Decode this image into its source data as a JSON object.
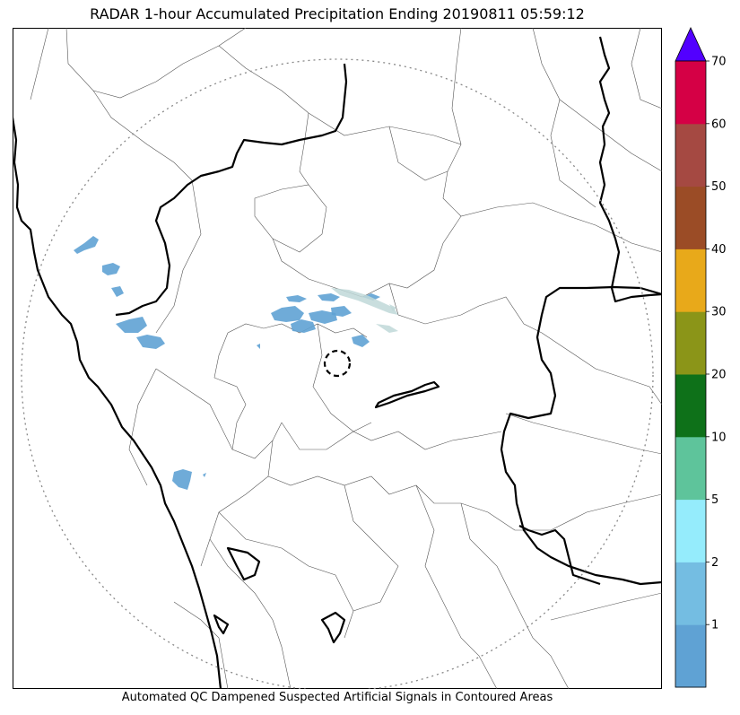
{
  "title": "RADAR 1-hour Accumulated Precipitation Ending 20190811 05:59:12",
  "footer": "Automated QC Dampened Suspected Artificial Signals in Contoured Areas",
  "colorbar": {
    "levels": [
      {
        "label": "",
        "color": "#5fa2d4"
      },
      {
        "label": "1",
        "color": "#74bde2"
      },
      {
        "label": "2",
        "color": "#95ecfc"
      },
      {
        "label": "5",
        "color": "#5ec49b"
      },
      {
        "label": "10",
        "color": "#0e7119"
      },
      {
        "label": "20",
        "color": "#8b9518"
      },
      {
        "label": "30",
        "color": "#e8a91a"
      },
      {
        "label": "40",
        "color": "#9b4c26"
      },
      {
        "label": "50",
        "color": "#a54942"
      },
      {
        "label": "60",
        "color": "#d50045"
      },
      {
        "label": "70",
        "color": ""
      }
    ],
    "extend_color": "#5200ff"
  },
  "map": {
    "colors": {
      "precip": "#5fa2d4",
      "coast_state": "#000000",
      "district": "#555555",
      "range_ring": "#888888"
    }
  }
}
